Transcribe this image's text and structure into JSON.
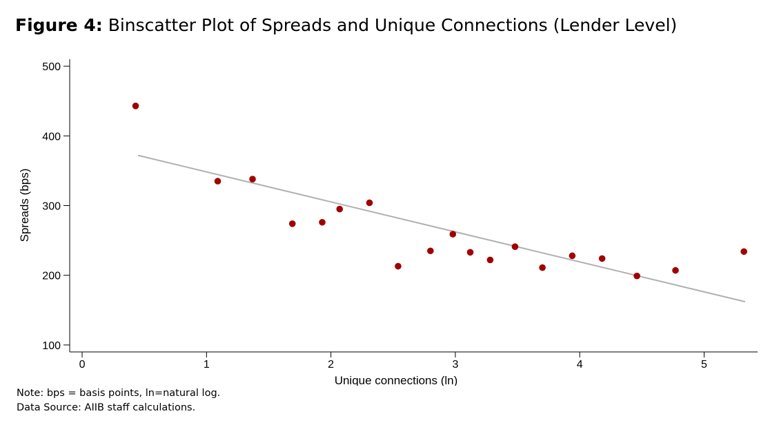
{
  "figure": {
    "label": "Figure 4",
    "separator": ":",
    "title": "Binscatter Plot of Spreads and Unique Connections (Lender Level)"
  },
  "notes": {
    "note": "Note: bps = basis points, ln=natural log.",
    "source": "Data Source: AIIB staff calculations."
  },
  "colors": {
    "points": "#a00000",
    "fit_line": "#b0b0b0",
    "axis": "#000000"
  },
  "chart_data": {
    "type": "scatter",
    "xlabel": "Unique connections (ln)",
    "ylabel": "Spreads (bps)",
    "xlim": [
      -0.1,
      5.43
    ],
    "ylim": [
      90,
      510
    ],
    "xticks": [
      0,
      1,
      2,
      3,
      4,
      5
    ],
    "yticks": [
      100,
      200,
      300,
      400,
      500
    ],
    "grid": false,
    "points": [
      {
        "x": 0.43,
        "y": 443
      },
      {
        "x": 1.09,
        "y": 335
      },
      {
        "x": 1.37,
        "y": 338
      },
      {
        "x": 1.69,
        "y": 274
      },
      {
        "x": 1.93,
        "y": 276
      },
      {
        "x": 2.07,
        "y": 295
      },
      {
        "x": 2.31,
        "y": 304
      },
      {
        "x": 2.54,
        "y": 213
      },
      {
        "x": 2.8,
        "y": 235
      },
      {
        "x": 2.98,
        "y": 259
      },
      {
        "x": 3.12,
        "y": 233
      },
      {
        "x": 3.28,
        "y": 222
      },
      {
        "x": 3.48,
        "y": 241
      },
      {
        "x": 3.7,
        "y": 211
      },
      {
        "x": 3.94,
        "y": 228
      },
      {
        "x": 4.18,
        "y": 224
      },
      {
        "x": 4.46,
        "y": 199
      },
      {
        "x": 4.77,
        "y": 207
      },
      {
        "x": 5.32,
        "y": 234
      }
    ],
    "fit_line": {
      "x": [
        0.45,
        5.33
      ],
      "y": [
        372,
        162
      ]
    }
  }
}
